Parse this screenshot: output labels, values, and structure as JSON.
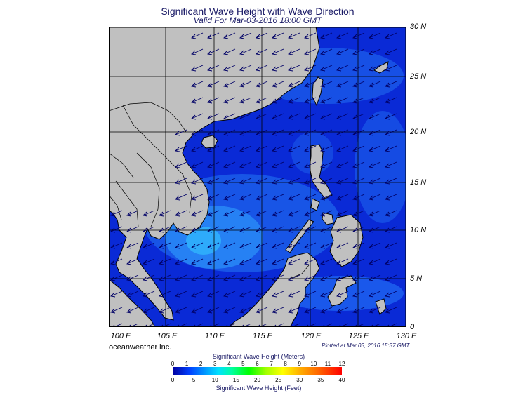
{
  "header": {
    "title": "Significant Wave Height with Wave Direction",
    "subtitle": "Valid For Mar-03-2016 18:00 GMT"
  },
  "map": {
    "lat_labels": [
      "30 N",
      "25 N",
      "20 N",
      "15 N",
      "10 N",
      "5 N",
      "0"
    ],
    "lon_labels": [
      "100 E",
      "105 E",
      "110 E",
      "115 E",
      "120 E",
      "125 E",
      "130 E"
    ],
    "extent": {
      "lon_min": 99,
      "lon_max": 130,
      "lat_min": 0,
      "lat_max": 30
    },
    "colors": {
      "land": "#c0c0c0",
      "sea_deep": "#0a2ad6",
      "sea_mid": "#1e64f0",
      "sea_light": "#2aa8f8",
      "grid": "#000000",
      "arrow": "#000066"
    }
  },
  "footer": {
    "credit": "oceanweather inc.",
    "plotted": "Plotted at Mar 03, 2016 15:37 GMT"
  },
  "legend": {
    "title_meters": "Significant Wave Height (Meters)",
    "title_feet": "Significant Wave Height (Feet)",
    "meters_ticks": [
      "0",
      "1",
      "2",
      "3",
      "4",
      "5",
      "6",
      "7",
      "8",
      "9",
      "10",
      "11",
      "12"
    ],
    "feet_ticks": [
      "0",
      "5",
      "10",
      "15",
      "20",
      "25",
      "30",
      "35",
      "40"
    ]
  }
}
